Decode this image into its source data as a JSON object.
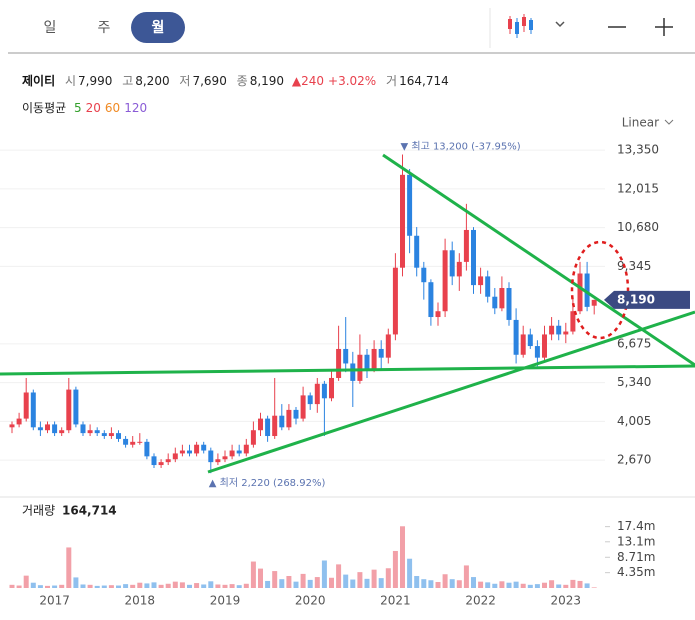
{
  "tabs": [
    "일",
    "주",
    "월"
  ],
  "selected_tab": 2,
  "info": {
    "name": "제이티",
    "open_label": "시",
    "open": "7,990",
    "high_label": "고",
    "high": "8,200",
    "low_label": "저",
    "low": "7,690",
    "close_label": "종",
    "close": "8,190",
    "change": "▲240",
    "change_pct": "+3.02%",
    "volume_label": "거",
    "volume": "164,714"
  },
  "ma_legend": {
    "title": "이동평균",
    "items": [
      {
        "name": "5",
        "color": "#33a02c"
      },
      {
        "name": "20",
        "color": "#e8414d"
      },
      {
        "name": "60",
        "color": "#f08a24"
      },
      {
        "name": "120",
        "color": "#8a5cd6"
      }
    ]
  },
  "scale_label": "Linear",
  "chart_data": {
    "type": "candlestick",
    "categories": [
      null,
      null,
      null,
      null,
      null,
      null,
      "2017",
      null,
      null,
      null,
      null,
      null,
      null,
      null,
      null,
      null,
      null,
      null,
      "2018",
      null,
      null,
      null,
      null,
      null,
      null,
      null,
      null,
      null,
      null,
      null,
      "2019",
      null,
      null,
      null,
      null,
      null,
      null,
      null,
      null,
      null,
      null,
      null,
      "2020",
      null,
      null,
      null,
      null,
      null,
      null,
      null,
      null,
      null,
      null,
      null,
      "2021",
      null,
      null,
      null,
      null,
      null,
      null,
      null,
      null,
      null,
      null,
      null,
      "2022",
      null,
      null,
      null,
      null,
      null,
      null,
      null,
      null,
      null,
      null,
      null,
      "2023",
      null,
      null,
      null,
      null
    ],
    "open": [
      3800,
      3900,
      4100,
      5000,
      3800,
      3700,
      3900,
      3600,
      3700,
      5100,
      3900,
      3600,
      3700,
      3600,
      3500,
      3600,
      3400,
      3200,
      3300,
      3300,
      2800,
      2500,
      2600,
      2700,
      2900,
      3000,
      2900,
      3200,
      3000,
      2600,
      2700,
      2800,
      3000,
      2900,
      3200,
      3700,
      4100,
      3500,
      4200,
      3800,
      4400,
      4100,
      4900,
      4600,
      5300,
      4800,
      5500,
      6500,
      6000,
      5400,
      6300,
      5800,
      6500,
      6200,
      7000,
      9300,
      12500,
      10400,
      9300,
      8800,
      7600,
      7800,
      9900,
      9000,
      9500,
      10600,
      8700,
      9000,
      8300,
      7900,
      8600,
      7500,
      6300,
      7000,
      6600,
      6200,
      7000,
      7300,
      7000,
      7100,
      7800,
      9100,
      7990
    ],
    "high": [
      4000,
      4300,
      5500,
      5100,
      4000,
      4000,
      4000,
      3800,
      5500,
      5200,
      4000,
      3900,
      3800,
      3700,
      3800,
      3700,
      3500,
      3500,
      3600,
      3400,
      2900,
      2700,
      2900,
      3100,
      3200,
      3200,
      3300,
      3300,
      3100,
      2900,
      3000,
      3200,
      3200,
      3400,
      4000,
      4300,
      4200,
      5500,
      4600,
      4600,
      4500,
      5200,
      5000,
      5500,
      5400,
      5800,
      7300,
      7600,
      6400,
      7000,
      6500,
      6800,
      6800,
      7200,
      9800,
      13200,
      12700,
      10700,
      9500,
      8900,
      8100,
      10300,
      10200,
      9800,
      11500,
      10700,
      9300,
      9200,
      8600,
      9000,
      8800,
      7900,
      7300,
      7200,
      6800,
      7300,
      7600,
      7500,
      7400,
      8300,
      9500,
      9500,
      8200
    ],
    "low": [
      3600,
      3800,
      4000,
      3700,
      3500,
      3600,
      3500,
      3500,
      3600,
      3800,
      3500,
      3500,
      3500,
      3400,
      3400,
      3300,
      3100,
      3100,
      3200,
      2700,
      2400,
      2400,
      2500,
      2600,
      2800,
      2800,
      2800,
      2900,
      2220,
      2500,
      2600,
      2700,
      2800,
      2800,
      3100,
      3500,
      3300,
      3400,
      3700,
      3700,
      3900,
      4000,
      4400,
      4300,
      3500,
      4700,
      5400,
      5700,
      4500,
      5300,
      5500,
      5700,
      5800,
      6000,
      6800,
      9000,
      9800,
      9000,
      8200,
      7300,
      7300,
      7600,
      8700,
      8500,
      9200,
      8400,
      8400,
      8100,
      7700,
      7800,
      7300,
      6000,
      6200,
      6500,
      5900,
      6100,
      6800,
      6800,
      6700,
      7000,
      7700,
      7800,
      7690
    ],
    "close": [
      3900,
      4100,
      5000,
      3800,
      3700,
      3900,
      3600,
      3700,
      5100,
      3900,
      3600,
      3700,
      3600,
      3500,
      3600,
      3400,
      3200,
      3300,
      3300,
      2800,
      2500,
      2600,
      2700,
      2900,
      3000,
      2900,
      3200,
      3000,
      2600,
      2700,
      2800,
      3000,
      2900,
      3200,
      3700,
      4100,
      3500,
      4200,
      3800,
      4400,
      4100,
      4900,
      4600,
      5300,
      4800,
      5500,
      6500,
      6000,
      5400,
      6300,
      5800,
      6500,
      6200,
      7000,
      9300,
      12500,
      10400,
      9300,
      8800,
      7600,
      7800,
      9900,
      9000,
      9500,
      10600,
      8700,
      9000,
      8300,
      7900,
      8600,
      7500,
      6300,
      7000,
      6600,
      6200,
      7000,
      7300,
      7000,
      7100,
      7800,
      9100,
      7950,
      8190
    ],
    "volume": [
      900000,
      700000,
      3500000,
      1500000,
      800000,
      600000,
      700000,
      900000,
      11500000,
      3000000,
      1000000,
      900000,
      600000,
      700000,
      800000,
      700000,
      1100000,
      900000,
      1500000,
      1300000,
      1600000,
      900000,
      1200000,
      1800000,
      1600000,
      900000,
      1400000,
      1000000,
      1900000,
      1000000,
      900000,
      1100000,
      800000,
      1200000,
      7500000,
      5500000,
      2000000,
      4800000,
      2500000,
      3400000,
      1800000,
      4000000,
      2300000,
      3100000,
      7800000,
      2900000,
      6700000,
      3800000,
      2400000,
      4500000,
      2600000,
      5200000,
      2800000,
      5600000,
      10500000,
      17500000,
      8300000,
      3400000,
      2500000,
      2200000,
      1700000,
      3900000,
      2500000,
      2200000,
      6400000,
      3100000,
      1800000,
      1600000,
      1200000,
      1900000,
      1500000,
      1800000,
      1200000,
      900000,
      1100000,
      1500000,
      2200000,
      1000000,
      900000,
      2300000,
      2000000,
      1300000,
      164714
    ],
    "up_color": "#e8414d",
    "down_color": "#2b83e0",
    "up_volume_color": "#f2a0a8",
    "down_volume_color": "#8fc0ee",
    "ylim": [
      1640,
      13700
    ],
    "yticks": [
      {
        "value": 13350,
        "label": "13,350"
      },
      {
        "value": 12015,
        "label": "12,015"
      },
      {
        "value": 10680,
        "label": "10,680"
      },
      {
        "value": 9345,
        "label": "9,345"
      },
      {
        "value": 6675,
        "label": "6,675"
      },
      {
        "value": 5340,
        "label": "5,340"
      },
      {
        "value": 4005,
        "label": "4,005"
      },
      {
        "value": 2670,
        "label": "2,670"
      }
    ],
    "grid": true,
    "last_price": {
      "value": 8190,
      "label": "8,190"
    },
    "annotations": [
      {
        "text": "▼ 최고 13,200 (-37.95%)",
        "value": 13200
      },
      {
        "text": "▲ 최저 2,220 (268.92%)",
        "value": 2220
      }
    ],
    "volume_title": "거래량",
    "volume_value": "164,714",
    "volume_ylim": [
      0,
      25800000
    ],
    "volume_ticks": [
      {
        "value": 17400000,
        "label": "17.4m"
      },
      {
        "value": 13100000,
        "label": "13.1m"
      },
      {
        "value": 8710000,
        "label": "8.71m"
      },
      {
        "value": 4350000,
        "label": "4.35m"
      }
    ]
  }
}
